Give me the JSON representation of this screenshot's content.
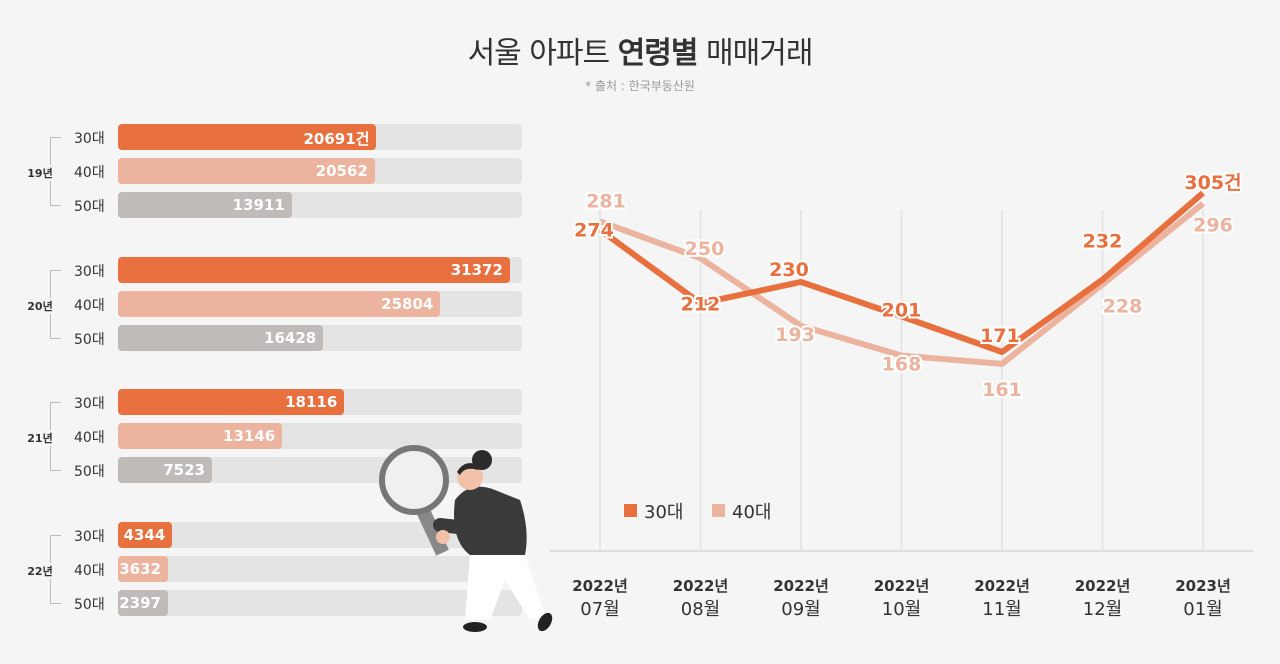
{
  "title_normal_1": "서울 아파트",
  "title_bold": "연령별",
  "title_normal_2": "매매거래",
  "source": "* 출처 : 한국부동산원",
  "colors": {
    "age30": "#e8703f",
    "age40": "#ecb39e",
    "age50": "#c0bbb8",
    "track": "#e4e4e4"
  },
  "chart_data": [
    {
      "type": "bar",
      "orientation": "horizontal",
      "groups": [
        {
          "year": "19년",
          "rows": [
            {
              "age": "30대",
              "value": 20691,
              "label": "20691건"
            },
            {
              "age": "40대",
              "value": 20562,
              "label": "20562"
            },
            {
              "age": "50대",
              "value": 13911,
              "label": "13911"
            }
          ]
        },
        {
          "year": "20년",
          "rows": [
            {
              "age": "30대",
              "value": 31372,
              "label": "31372"
            },
            {
              "age": "40대",
              "value": 25804,
              "label": "25804"
            },
            {
              "age": "50대",
              "value": 16428,
              "label": "16428"
            }
          ]
        },
        {
          "year": "21년",
          "rows": [
            {
              "age": "30대",
              "value": 18116,
              "label": "18116"
            },
            {
              "age": "40대",
              "value": 13146,
              "label": "13146"
            },
            {
              "age": "50대",
              "value": 7523,
              "label": "7523"
            }
          ]
        },
        {
          "year": "22년",
          "rows": [
            {
              "age": "30대",
              "value": 4344,
              "label": "4344"
            },
            {
              "age": "40대",
              "value": 3632,
              "label": "3632"
            },
            {
              "age": "50대",
              "value": 2397,
              "label": "2397"
            }
          ]
        }
      ]
    },
    {
      "type": "line",
      "categories": [
        [
          "2022년",
          "07월"
        ],
        [
          "2022년",
          "08월"
        ],
        [
          "2022년",
          "09월"
        ],
        [
          "2022년",
          "10월"
        ],
        [
          "2022년",
          "11월"
        ],
        [
          "2022년",
          "12월"
        ],
        [
          "2023년",
          "01월"
        ]
      ],
      "series": [
        {
          "name": "30대",
          "values": [
            274,
            212,
            230,
            201,
            171,
            232,
            305
          ],
          "labels": [
            "274",
            "212",
            "230",
            "201",
            "171",
            "232",
            "305건"
          ]
        },
        {
          "name": "40대",
          "values": [
            281,
            250,
            193,
            168,
            161,
            228,
            296
          ],
          "labels": [
            "281",
            "250",
            "193",
            "168",
            "161",
            "228",
            "296"
          ]
        }
      ],
      "legend": "inside-bottom-left",
      "grid": "vertical"
    }
  ]
}
